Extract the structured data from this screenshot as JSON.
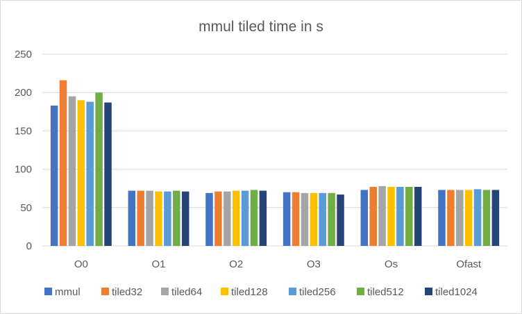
{
  "chart_data": {
    "type": "bar",
    "title": "mmul tiled time in s",
    "xlabel": "",
    "ylabel": "",
    "ylim": [
      0,
      250
    ],
    "yticks": [
      0,
      50,
      100,
      150,
      200,
      250
    ],
    "grid": true,
    "legend_position": "bottom",
    "categories": [
      "O0",
      "O1",
      "O2",
      "O3",
      "Os",
      "Ofast"
    ],
    "series": [
      {
        "name": "mmul",
        "color": "#4472C4",
        "values": [
          183,
          72,
          69,
          70,
          73,
          73
        ]
      },
      {
        "name": "tiled32",
        "color": "#ED7D31",
        "values": [
          216,
          72,
          71,
          70,
          77,
          73
        ]
      },
      {
        "name": "tiled64",
        "color": "#A5A5A5",
        "values": [
          195,
          72,
          71,
          69,
          78,
          73
        ]
      },
      {
        "name": "tiled128",
        "color": "#FFC000",
        "values": [
          190,
          71,
          72,
          69,
          77,
          73
        ]
      },
      {
        "name": "tiled256",
        "color": "#5B9BD5",
        "values": [
          188,
          71,
          72,
          69,
          77,
          74
        ]
      },
      {
        "name": "tiled512",
        "color": "#70AD47",
        "values": [
          200,
          72,
          73,
          69,
          77,
          73
        ]
      },
      {
        "name": "tiled1024",
        "color": "#264478",
        "values": [
          187,
          71,
          72,
          67,
          77,
          73
        ]
      }
    ]
  }
}
